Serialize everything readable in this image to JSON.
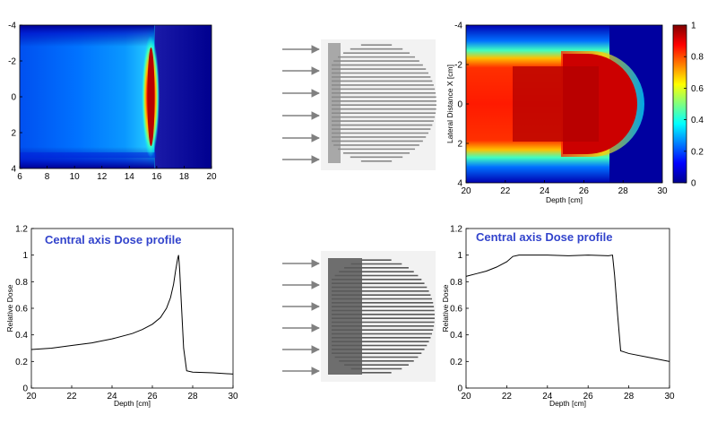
{
  "chart_data": [
    {
      "type": "heatmap",
      "xlim": [
        6,
        20
      ],
      "ylim": [
        -4,
        4
      ],
      "x_ticks": [
        "6",
        "8",
        "10",
        "12",
        "14",
        "16",
        "18",
        "20"
      ],
      "y_ticks": [
        "-4",
        "-2",
        "0",
        "2",
        "4"
      ],
      "xlabel": "",
      "ylabel": "",
      "colorbar": false,
      "notes": "peak dose band at depth ~15.5 cm"
    },
    {
      "type": "heatmap",
      "xlim": [
        20,
        30
      ],
      "ylim": [
        -4,
        4
      ],
      "x_ticks": [
        "20",
        "22",
        "24",
        "26",
        "28",
        "30"
      ],
      "y_ticks": [
        "-4",
        "-2",
        "0",
        "2",
        "4"
      ],
      "xlabel": "Depth [cm]",
      "ylabel": "Lateral Distance X [cm]",
      "colorbar": true,
      "colorbar_ticks": [
        "0",
        "0.2",
        "0.4",
        "0.6",
        "0.8",
        "1"
      ]
    },
    {
      "type": "line",
      "annotation": "Central axis Dose profile",
      "xlabel": "Depth [cm]",
      "ylabel": "Relative Dose",
      "xlim": [
        20,
        30
      ],
      "ylim": [
        0,
        1.2
      ],
      "x_ticks": [
        "20",
        "22",
        "24",
        "26",
        "28",
        "30"
      ],
      "y_ticks": [
        "0",
        "0.2",
        "0.4",
        "0.6",
        "0.8",
        "1",
        "1.2"
      ],
      "grid": false,
      "series": [
        {
          "x": [
            20,
            21,
            22,
            23,
            24,
            25,
            25.5,
            26,
            26.4,
            26.7,
            26.9,
            27.05,
            27.15,
            27.25,
            27.3,
            27.35,
            27.45,
            27.55,
            27.7,
            28,
            29,
            30
          ],
          "y": [
            0.29,
            0.3,
            0.32,
            0.34,
            0.37,
            0.41,
            0.44,
            0.48,
            0.53,
            0.6,
            0.68,
            0.78,
            0.88,
            0.97,
            1.0,
            0.9,
            0.6,
            0.3,
            0.13,
            0.12,
            0.115,
            0.105
          ]
        }
      ]
    },
    {
      "type": "line",
      "annotation": "Central axis Dose profile",
      "xlabel": "Depth [cm]",
      "ylabel": "Relative Dose",
      "xlim": [
        20,
        30
      ],
      "ylim": [
        0,
        1.2
      ],
      "x_ticks": [
        "20",
        "22",
        "24",
        "26",
        "28",
        "30"
      ],
      "y_ticks": [
        "0",
        "0.2",
        "0.4",
        "0.6",
        "0.8",
        "1",
        "1.2"
      ],
      "grid": false,
      "series": [
        {
          "x": [
            20,
            20.5,
            21,
            21.5,
            22,
            22.3,
            22.6,
            23,
            24,
            25,
            26,
            27,
            27.2,
            27.3,
            27.45,
            27.6,
            27.8,
            28,
            29,
            30
          ],
          "y": [
            0.84,
            0.86,
            0.88,
            0.91,
            0.95,
            0.99,
            1.0,
            1.0,
            1.0,
            0.995,
            1.0,
            0.995,
            1.0,
            0.85,
            0.55,
            0.28,
            0.27,
            0.26,
            0.23,
            0.2
          ]
        }
      ]
    }
  ]
}
